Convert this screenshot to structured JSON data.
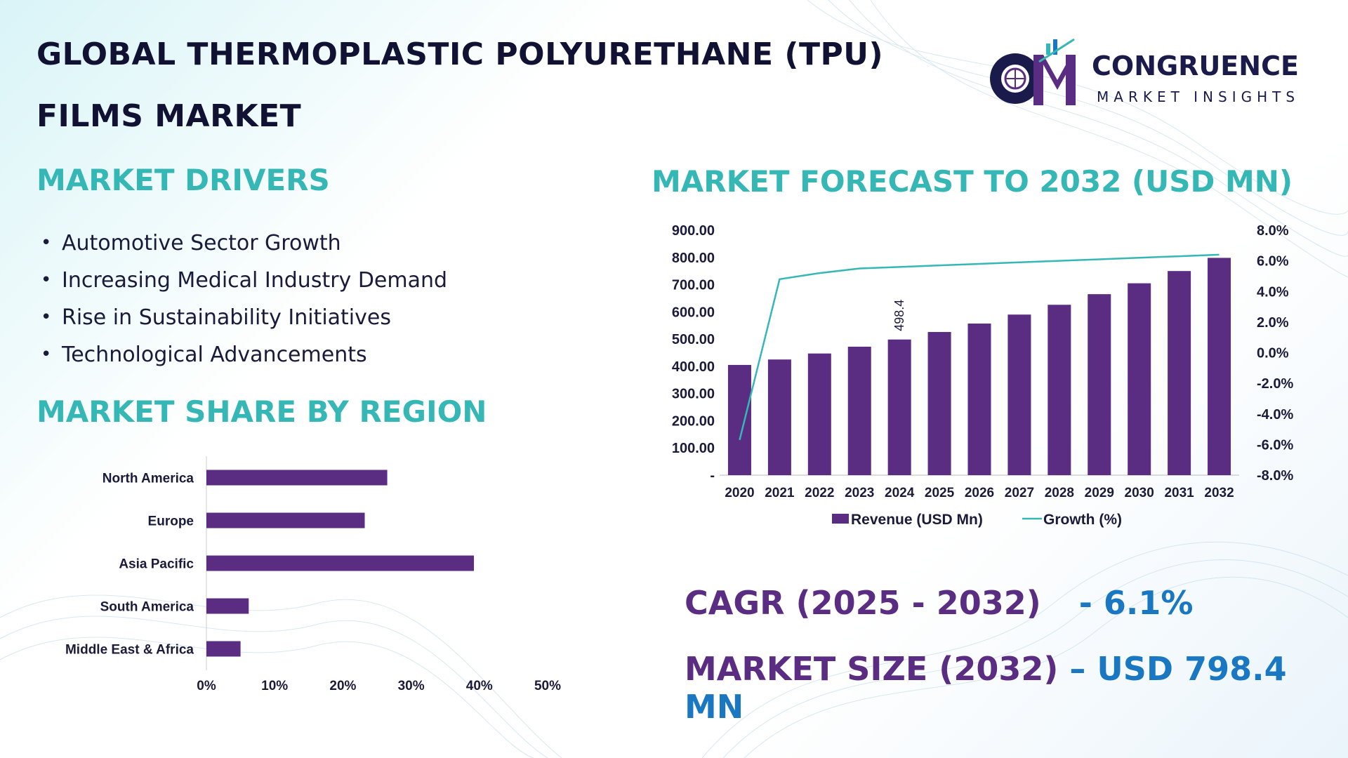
{
  "title_line1": "GLOBAL THERMOPLASTIC POLYURETHANE (TPU)",
  "title_line2": "FILMS MARKET",
  "logo": {
    "name": "CONGRUENCE",
    "subtitle": "MARKET INSIGHTS",
    "mark": "CM"
  },
  "drivers": {
    "heading": "MARKET DRIVERS",
    "items": [
      "Automotive Sector Growth",
      "Increasing Medical Industry Demand",
      "Rise in Sustainability Initiatives",
      "Technological Advancements"
    ]
  },
  "region_heading": "MARKET SHARE BY REGION",
  "forecast_heading": "MARKET FORECAST TO 2032 (USD MN)",
  "kpis": {
    "cagr_label": "CAGR (2025 - 2032)",
    "cagr_sep": "-",
    "cagr_value": "6.1%",
    "size_label": "MARKET SIZE (2032)",
    "size_sep": "–",
    "size_value": "USD 798.4 MN"
  },
  "colors": {
    "bar": "#5b2d82",
    "line": "#35b8b5",
    "heading": "#35b8b5",
    "kpi_value": "#1a78c2"
  },
  "chart_data": [
    {
      "type": "bar",
      "orientation": "horizontal",
      "categories": [
        "North America",
        "Europe",
        "Asia Pacific",
        "South America",
        "Middle East & Africa"
      ],
      "values": [
        26.5,
        23.2,
        39.2,
        6.2,
        5.0
      ],
      "xlim": [
        0,
        50
      ],
      "xticks": [
        "0%",
        "10%",
        "20%",
        "30%",
        "40%",
        "50%"
      ]
    },
    {
      "type": "bar",
      "categories": [
        "2020",
        "2021",
        "2022",
        "2023",
        "2024",
        "2025",
        "2026",
        "2027",
        "2028",
        "2029",
        "2030",
        "2031",
        "2032"
      ],
      "series": [
        {
          "name": "Revenue (USD Mn)",
          "type": "bar",
          "axis": "left",
          "values": [
            405,
            425,
            447,
            472,
            498.4,
            526,
            557,
            590,
            626,
            665,
            705,
            750,
            798.4
          ]
        },
        {
          "name": "Growth (%)",
          "type": "line",
          "axis": "right",
          "values": [
            -5.7,
            4.8,
            5.2,
            5.5,
            5.6,
            5.7,
            5.8,
            5.9,
            6.0,
            6.1,
            6.2,
            6.3,
            6.4
          ]
        }
      ],
      "data_labels": [
        {
          "index": 4,
          "text": "498.4"
        }
      ],
      "ylim": [
        0,
        900
      ],
      "yticks": [
        "-",
        "100.00",
        "200.00",
        "300.00",
        "400.00",
        "500.00",
        "600.00",
        "700.00",
        "800.00",
        "900.00"
      ],
      "y2lim": [
        -8,
        8
      ],
      "y2ticks": [
        "-8.0%",
        "-6.0%",
        "-4.0%",
        "-2.0%",
        "0.0%",
        "2.0%",
        "4.0%",
        "6.0%",
        "8.0%"
      ],
      "legend": "bottom"
    }
  ]
}
